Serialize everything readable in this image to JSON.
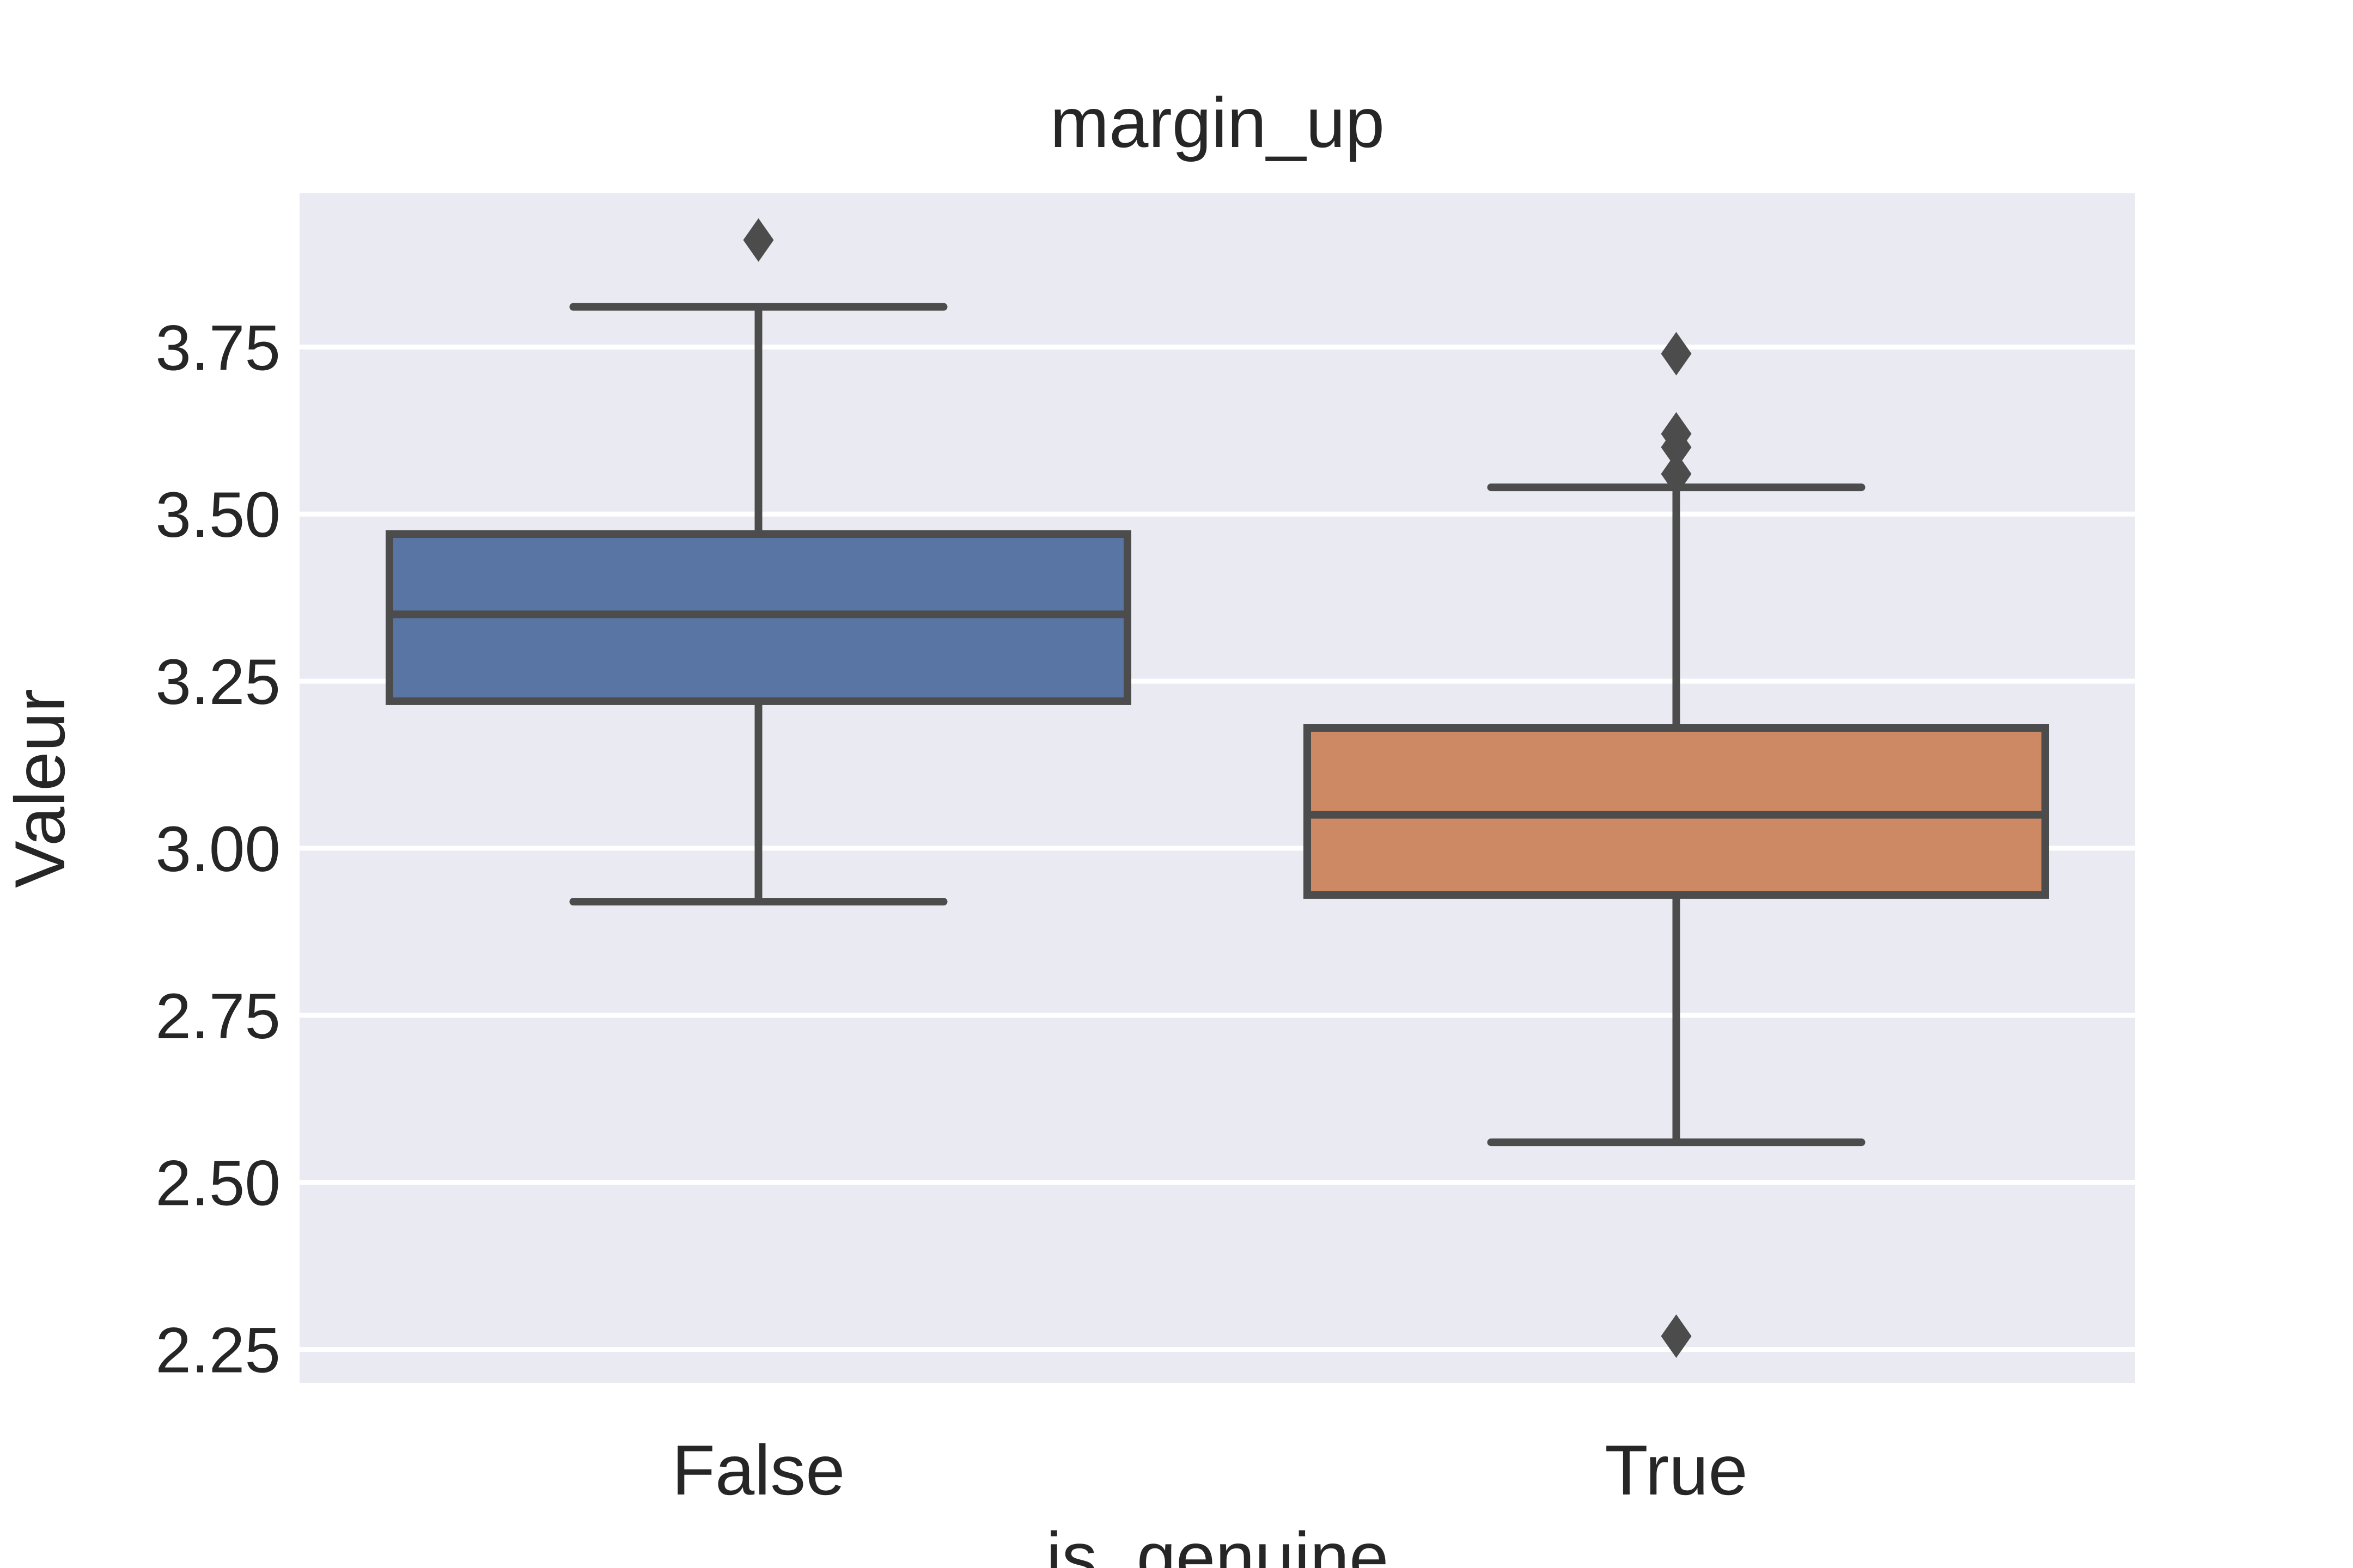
{
  "chart_data": {
    "type": "box",
    "title": "margin_up",
    "xlabel": "is_genuine",
    "ylabel": "Valeur",
    "categories": [
      "False",
      "True"
    ],
    "ylim": [
      2.2,
      3.98
    ],
    "yticks": [
      2.25,
      2.5,
      2.75,
      3.0,
      3.25,
      3.5,
      3.75
    ],
    "ytick_labels": [
      "2.25",
      "2.50",
      "2.75",
      "3.00",
      "3.25",
      "3.50",
      "3.75"
    ],
    "grid": true,
    "boxes": [
      {
        "category": "False",
        "color": "#5975a4",
        "whisker_low": 2.92,
        "q1": 3.22,
        "median": 3.35,
        "q3": 3.47,
        "whisker_high": 3.81,
        "outliers": [
          3.91
        ]
      },
      {
        "category": "True",
        "color": "#cc8963",
        "whisker_low": 2.56,
        "q1": 2.93,
        "median": 3.05,
        "q3": 3.18,
        "whisker_high": 3.54,
        "outliers": [
          3.74,
          3.62,
          3.6,
          3.56,
          2.27
        ]
      }
    ]
  },
  "style": {
    "background": "#eaeaf2",
    "grid_color": "#ffffff",
    "line_color": "#4c4c4c",
    "text_color": "#262626"
  }
}
